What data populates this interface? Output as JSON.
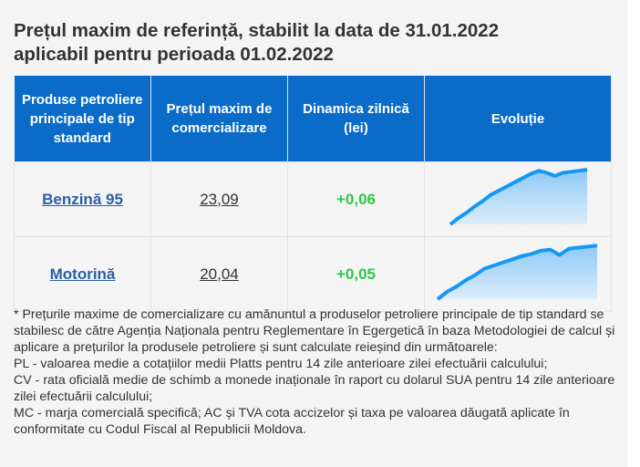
{
  "title_line1": "Prețul maxim de referință, stabilit la data de 31.01.2022",
  "title_line2": "aplicabil pentru perioada 01.02.2022",
  "headers": [
    "Produse petroliere principale de tip standard",
    "Prețul maxim de comercializare",
    "Dinamica zilnică (lei)",
    "Evoluție"
  ],
  "rows": [
    {
      "product": "Benzină 95",
      "price": "23,09",
      "dynamic": "+0,06",
      "trend": [
        0,
        6,
        11,
        17,
        22,
        28,
        32,
        36,
        40,
        44,
        48,
        51,
        49,
        46,
        49,
        50,
        51,
        52
      ]
    },
    {
      "product": "Motorină",
      "price": "20,04",
      "dynamic": "+0,05",
      "trend": [
        0,
        7,
        12,
        18,
        23,
        29,
        32,
        35,
        38,
        41,
        43,
        46,
        47,
        42,
        48,
        49,
        50,
        51
      ]
    }
  ],
  "colors": {
    "header": "#0a6cc8",
    "positive": "#2ec94a",
    "line": "#1598f5"
  },
  "notes": [
    "* Prețurile maxime de comercializare cu amănuntul a produselor petroliere principale de tip standard se stabilesc de către Agenția Naționala pentru Reglementare în Egergetică în baza Metodologiei de calcul și aplicare a prețurilor la produsele petroliere și sunt calculate reieșind din următoarele:",
    "PL - valoarea medie a cotațiilor medii Platts pentru 14 zile anterioare zilei efectuării calculului;",
    "CV - rata oficială medie de schimb a monede inaționale în raport cu dolarul SUA pentru 14 zile anterioare zilei efectuării calculului;",
    "MC - marja comercială specifică; AC și TVA cota accizelor și taxa pe valoarea dăugată aplicate în conformitate cu Codul Fiscal al Republicii Moldova."
  ]
}
